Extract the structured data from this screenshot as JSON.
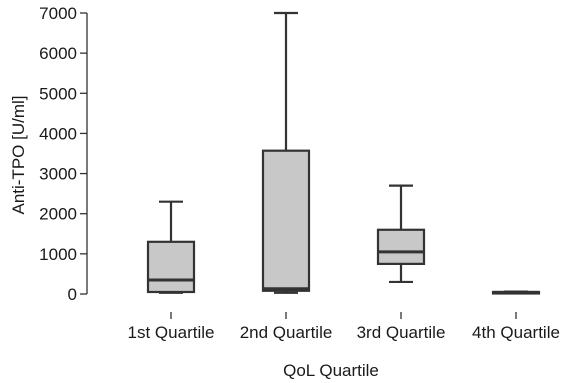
{
  "chart_data": {
    "type": "boxplot",
    "xlabel": "QoL Quartile",
    "ylabel": "Anti-TPO [U/ml]",
    "ylim": [
      0,
      7000
    ],
    "yticks": [
      0,
      1000,
      2000,
      3000,
      4000,
      5000,
      6000,
      7000
    ],
    "grid": false,
    "box_color": "#c8c8c8",
    "line_color": "#333333",
    "categories": [
      "1st Quartile",
      "2nd Quartile",
      "3rd Quartile",
      "4th Quartile"
    ],
    "boxes": [
      {
        "min": 30,
        "q1": 50,
        "median": 350,
        "q3": 1300,
        "max": 2300
      },
      {
        "min": 30,
        "q1": 80,
        "median": 130,
        "q3": 3570,
        "max": 7000
      },
      {
        "min": 300,
        "q1": 750,
        "median": 1050,
        "q3": 1600,
        "max": 2700
      },
      {
        "min": 20,
        "q1": 30,
        "median": 40,
        "q3": 50,
        "max": 60
      }
    ]
  }
}
